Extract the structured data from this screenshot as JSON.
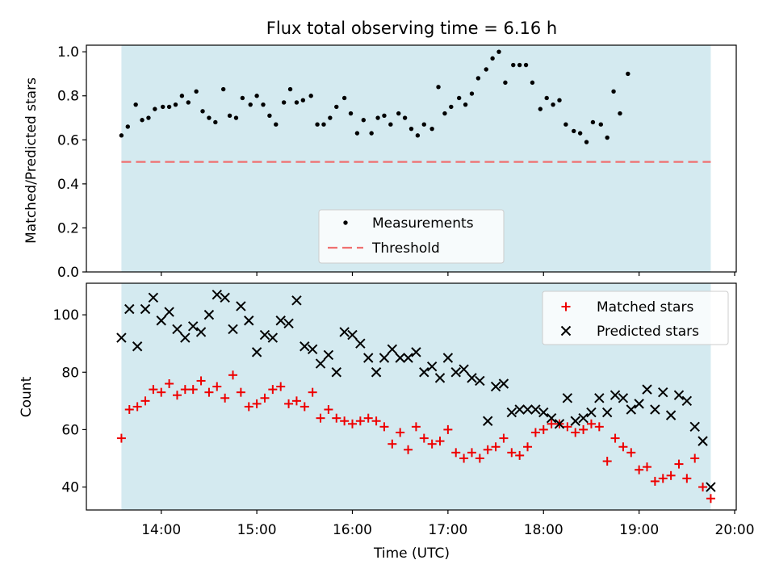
{
  "title": "Flux total observing time = 6.16 h",
  "colors": {
    "shade": "#d4eaf0",
    "measurement": "#000000",
    "threshold": "#f07070",
    "matched": "#ee0000",
    "predicted": "#000000"
  },
  "chart_data": [
    {
      "type": "scatter",
      "panel": "top",
      "ylabel": "Matched/Predicted stars",
      "xlabel": "",
      "ylim": [
        0.0,
        1.03
      ],
      "yticks": [
        {
          "value": 0.0,
          "label": "0.0"
        },
        {
          "value": 0.2,
          "label": "0.2"
        },
        {
          "value": 0.4,
          "label": "0.4"
        },
        {
          "value": 0.6,
          "label": "0.6"
        },
        {
          "value": 0.8,
          "label": "0.8"
        },
        {
          "value": 1.0,
          "label": "1.0"
        }
      ],
      "shaded_span": [
        "13:35",
        "19:45"
      ],
      "threshold": {
        "name": "Threshold",
        "value": 0.5,
        "style": "dashed"
      },
      "legend": {
        "position": "lower-center",
        "entries": [
          "Measurements",
          "Threshold"
        ]
      },
      "series": [
        {
          "name": "Measurements",
          "marker": "dot",
          "points": [
            [
              "13:35",
              0.62
            ],
            [
              "13:39",
              0.66
            ],
            [
              "13:44",
              0.76
            ],
            [
              "13:48",
              0.69
            ],
            [
              "13:52",
              0.7
            ],
            [
              "13:56",
              0.74
            ],
            [
              "14:01",
              0.75
            ],
            [
              "14:05",
              0.75
            ],
            [
              "14:09",
              0.76
            ],
            [
              "14:13",
              0.8
            ],
            [
              "14:17",
              0.77
            ],
            [
              "14:22",
              0.82
            ],
            [
              "14:26",
              0.73
            ],
            [
              "14:30",
              0.7
            ],
            [
              "14:34",
              0.68
            ],
            [
              "14:39",
              0.83
            ],
            [
              "14:43",
              0.71
            ],
            [
              "14:47",
              0.7
            ],
            [
              "14:51",
              0.79
            ],
            [
              "14:56",
              0.76
            ],
            [
              "15:00",
              0.8
            ],
            [
              "15:04",
              0.76
            ],
            [
              "15:08",
              0.71
            ],
            [
              "15:12",
              0.67
            ],
            [
              "15:17",
              0.77
            ],
            [
              "15:21",
              0.83
            ],
            [
              "15:25",
              0.77
            ],
            [
              "15:29",
              0.78
            ],
            [
              "15:34",
              0.8
            ],
            [
              "15:38",
              0.67
            ],
            [
              "15:42",
              0.67
            ],
            [
              "15:46",
              0.7
            ],
            [
              "15:50",
              0.75
            ],
            [
              "15:55",
              0.79
            ],
            [
              "15:59",
              0.72
            ],
            [
              "16:03",
              0.63
            ],
            [
              "16:07",
              0.69
            ],
            [
              "16:12",
              0.63
            ],
            [
              "16:16",
              0.7
            ],
            [
              "16:20",
              0.71
            ],
            [
              "16:24",
              0.67
            ],
            [
              "16:29",
              0.72
            ],
            [
              "16:33",
              0.7
            ],
            [
              "16:37",
              0.65
            ],
            [
              "16:41",
              0.62
            ],
            [
              "16:45",
              0.67
            ],
            [
              "16:50",
              0.65
            ],
            [
              "16:54",
              0.84
            ],
            [
              "16:58",
              0.72
            ],
            [
              "17:02",
              0.75
            ],
            [
              "17:07",
              0.79
            ],
            [
              "17:11",
              0.76
            ],
            [
              "17:15",
              0.81
            ],
            [
              "17:19",
              0.88
            ],
            [
              "17:24",
              0.92
            ],
            [
              "17:28",
              0.97
            ],
            [
              "17:32",
              1.0
            ],
            [
              "17:36",
              0.86
            ],
            [
              "17:41",
              0.94
            ],
            [
              "17:45",
              0.94
            ],
            [
              "17:49",
              0.94
            ],
            [
              "17:53",
              0.86
            ],
            [
              "17:58",
              0.74
            ],
            [
              "18:02",
              0.79
            ],
            [
              "18:06",
              0.76
            ],
            [
              "18:10",
              0.78
            ],
            [
              "18:14",
              0.67
            ],
            [
              "18:19",
              0.64
            ],
            [
              "18:23",
              0.63
            ],
            [
              "18:27",
              0.59
            ],
            [
              "18:31",
              0.68
            ],
            [
              "18:36",
              0.67
            ],
            [
              "18:40",
              0.61
            ],
            [
              "18:44",
              0.82
            ],
            [
              "18:48",
              0.72
            ],
            [
              "18:53",
              0.9
            ]
          ]
        }
      ]
    },
    {
      "type": "scatter",
      "panel": "bottom",
      "ylabel": "Count",
      "xlabel": "Time (UTC)",
      "ylim": [
        32,
        111
      ],
      "yticks": [
        {
          "value": 40,
          "label": "40"
        },
        {
          "value": 60,
          "label": "60"
        },
        {
          "value": 80,
          "label": "80"
        },
        {
          "value": 100,
          "label": "100"
        }
      ],
      "xlim": [
        "13:13",
        "20:01"
      ],
      "xticks": [
        {
          "value": "14:00",
          "label": "14:00"
        },
        {
          "value": "15:00",
          "label": "15:00"
        },
        {
          "value": "16:00",
          "label": "16:00"
        },
        {
          "value": "17:00",
          "label": "17:00"
        },
        {
          "value": "18:00",
          "label": "18:00"
        },
        {
          "value": "19:00",
          "label": "19:00"
        },
        {
          "value": "20:00",
          "label": "20:00"
        }
      ],
      "shaded_span": [
        "13:35",
        "19:45"
      ],
      "legend": {
        "position": "upper-right",
        "entries": [
          "Matched stars",
          "Predicted stars"
        ]
      },
      "series": [
        {
          "name": "Matched stars",
          "marker": "plus",
          "points": [
            [
              "13:35",
              57
            ],
            [
              "13:40",
              67
            ],
            [
              "13:45",
              68
            ],
            [
              "13:50",
              70
            ],
            [
              "13:55",
              74
            ],
            [
              "14:00",
              73
            ],
            [
              "14:05",
              76
            ],
            [
              "14:10",
              72
            ],
            [
              "14:15",
              74
            ],
            [
              "14:20",
              74
            ],
            [
              "14:25",
              77
            ],
            [
              "14:30",
              73
            ],
            [
              "14:35",
              75
            ],
            [
              "14:40",
              71
            ],
            [
              "14:45",
              79
            ],
            [
              "14:50",
              73
            ],
            [
              "14:55",
              68
            ],
            [
              "15:00",
              69
            ],
            [
              "15:05",
              71
            ],
            [
              "15:10",
              74
            ],
            [
              "15:15",
              75
            ],
            [
              "15:20",
              69
            ],
            [
              "15:25",
              70
            ],
            [
              "15:30",
              68
            ],
            [
              "15:35",
              73
            ],
            [
              "15:40",
              64
            ],
            [
              "15:45",
              67
            ],
            [
              "15:50",
              64
            ],
            [
              "15:55",
              63
            ],
            [
              "16:00",
              62
            ],
            [
              "16:05",
              63
            ],
            [
              "16:10",
              64
            ],
            [
              "16:15",
              63
            ],
            [
              "16:20",
              61
            ],
            [
              "16:25",
              55
            ],
            [
              "16:30",
              59
            ],
            [
              "16:35",
              53
            ],
            [
              "16:40",
              61
            ],
            [
              "16:45",
              57
            ],
            [
              "16:50",
              55
            ],
            [
              "16:55",
              56
            ],
            [
              "17:00",
              60
            ],
            [
              "17:05",
              52
            ],
            [
              "17:10",
              50
            ],
            [
              "17:15",
              52
            ],
            [
              "17:20",
              50
            ],
            [
              "17:25",
              53
            ],
            [
              "17:30",
              54
            ],
            [
              "17:35",
              57
            ],
            [
              "17:40",
              52
            ],
            [
              "17:45",
              51
            ],
            [
              "17:50",
              54
            ],
            [
              "17:55",
              59
            ],
            [
              "18:00",
              60
            ],
            [
              "18:05",
              62
            ],
            [
              "18:10",
              62
            ],
            [
              "18:15",
              61
            ],
            [
              "18:20",
              59
            ],
            [
              "18:25",
              60
            ],
            [
              "18:30",
              62
            ],
            [
              "18:35",
              61
            ],
            [
              "18:40",
              49
            ],
            [
              "18:45",
              57
            ],
            [
              "18:50",
              54
            ],
            [
              "18:55",
              52
            ],
            [
              "19:00",
              46
            ],
            [
              "19:05",
              47
            ],
            [
              "19:10",
              42
            ],
            [
              "19:15",
              43
            ],
            [
              "19:20",
              44
            ],
            [
              "19:25",
              48
            ],
            [
              "19:30",
              43
            ],
            [
              "19:35",
              50
            ],
            [
              "19:40",
              40
            ],
            [
              "19:45",
              36
            ]
          ]
        },
        {
          "name": "Predicted stars",
          "marker": "x",
          "points": [
            [
              "13:35",
              92
            ],
            [
              "13:40",
              102
            ],
            [
              "13:45",
              89
            ],
            [
              "13:50",
              102
            ],
            [
              "13:55",
              106
            ],
            [
              "14:00",
              98
            ],
            [
              "14:05",
              101
            ],
            [
              "14:10",
              95
            ],
            [
              "14:15",
              92
            ],
            [
              "14:20",
              96
            ],
            [
              "14:25",
              94
            ],
            [
              "14:30",
              100
            ],
            [
              "14:35",
              107
            ],
            [
              "14:40",
              106
            ],
            [
              "14:45",
              95
            ],
            [
              "14:50",
              103
            ],
            [
              "14:55",
              98
            ],
            [
              "15:00",
              87
            ],
            [
              "15:05",
              93
            ],
            [
              "15:10",
              92
            ],
            [
              "15:15",
              98
            ],
            [
              "15:20",
              97
            ],
            [
              "15:25",
              105
            ],
            [
              "15:30",
              89
            ],
            [
              "15:35",
              88
            ],
            [
              "15:40",
              83
            ],
            [
              "15:45",
              86
            ],
            [
              "15:50",
              80
            ],
            [
              "15:55",
              94
            ],
            [
              "16:00",
              93
            ],
            [
              "16:05",
              90
            ],
            [
              "16:10",
              85
            ],
            [
              "16:15",
              80
            ],
            [
              "16:20",
              85
            ],
            [
              "16:25",
              88
            ],
            [
              "16:30",
              85
            ],
            [
              "16:35",
              85
            ],
            [
              "16:40",
              87
            ],
            [
              "16:45",
              80
            ],
            [
              "16:50",
              82
            ],
            [
              "16:55",
              78
            ],
            [
              "17:00",
              85
            ],
            [
              "17:05",
              80
            ],
            [
              "17:10",
              81
            ],
            [
              "17:15",
              78
            ],
            [
              "17:20",
              77
            ],
            [
              "17:25",
              63
            ],
            [
              "17:30",
              75
            ],
            [
              "17:35",
              76
            ],
            [
              "17:40",
              66
            ],
            [
              "17:45",
              67
            ],
            [
              "17:50",
              67
            ],
            [
              "17:55",
              67
            ],
            [
              "18:00",
              66
            ],
            [
              "18:05",
              64
            ],
            [
              "18:10",
              62
            ],
            [
              "18:15",
              71
            ],
            [
              "18:20",
              63
            ],
            [
              "18:25",
              64
            ],
            [
              "18:30",
              66
            ],
            [
              "18:35",
              71
            ],
            [
              "18:40",
              66
            ],
            [
              "18:45",
              72
            ],
            [
              "18:50",
              71
            ],
            [
              "18:55",
              67
            ],
            [
              "19:00",
              69
            ],
            [
              "19:05",
              74
            ],
            [
              "19:10",
              67
            ],
            [
              "19:15",
              73
            ],
            [
              "19:20",
              65
            ],
            [
              "19:25",
              72
            ],
            [
              "19:30",
              70
            ],
            [
              "19:35",
              61
            ],
            [
              "19:40",
              56
            ],
            [
              "19:45",
              40
            ]
          ]
        }
      ]
    }
  ]
}
